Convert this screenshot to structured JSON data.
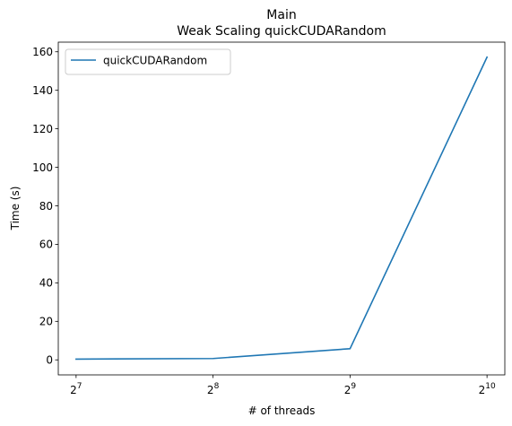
{
  "chart_data": {
    "type": "line",
    "title": "Main",
    "subtitle": "Weak Scaling quickCUDARandom",
    "xlabel": "# of threads",
    "ylabel": "Time (s)",
    "x_scale": "log2",
    "x": [
      128,
      256,
      512,
      1024
    ],
    "x_ticks": [
      128,
      256,
      512,
      1024
    ],
    "x_tick_labels": [
      {
        "base": "2",
        "exp": "7"
      },
      {
        "base": "2",
        "exp": "8"
      },
      {
        "base": "2",
        "exp": "9"
      },
      {
        "base": "2",
        "exp": "10"
      }
    ],
    "y_ticks": [
      0,
      20,
      40,
      60,
      80,
      100,
      120,
      140,
      160
    ],
    "ylim": [
      -7.8,
      165
    ],
    "xlim_log2": [
      6.87,
      10.13
    ],
    "grid": false,
    "legend_position": "top-left",
    "series": [
      {
        "name": "quickCUDARandom",
        "color": "#1f77b4",
        "values": [
          0.4,
          0.7,
          5.8,
          157.2
        ]
      }
    ]
  }
}
